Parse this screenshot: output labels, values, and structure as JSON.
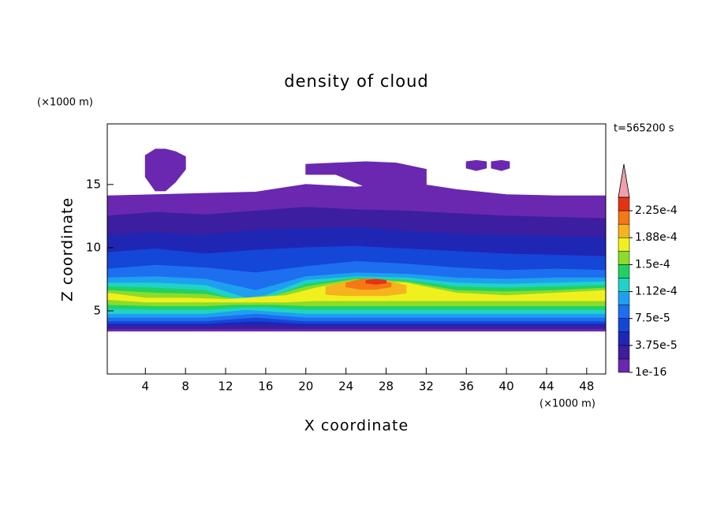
{
  "chart_data": {
    "type": "contour",
    "title": "density of cloud",
    "x_label": "X coordinate",
    "y_label": "Z coordinate",
    "x_unit": "(×1000 m)",
    "y_unit": "(×1000 m)",
    "time_label": "t=565200 s",
    "xlim": [
      0.2,
      49.9
    ],
    "ylim": [
      0,
      19.8
    ],
    "xticks": [
      4,
      8,
      12,
      16,
      20,
      24,
      28,
      32,
      36,
      40,
      44,
      48
    ],
    "yticks": [
      5,
      10,
      15
    ],
    "colors": [
      "#6a28b0",
      "#3c1ea0",
      "#2026b4",
      "#1446d8",
      "#1e6ef0",
      "#1ea0f0",
      "#20d2c8",
      "#20d264",
      "#8cdc28",
      "#f0f01e",
      "#f5b41e",
      "#f57814",
      "#e63214"
    ],
    "over_color": "#f0a0a8",
    "clim": [
      0,
      0.00024375
    ],
    "cticks": [
      {
        "value": 1e-16,
        "label": "1e-16"
      },
      {
        "value": 3.75e-05,
        "label": "3.75e-5"
      },
      {
        "value": 7.5e-05,
        "label": "7.5e-5"
      },
      {
        "value": 0.0001125,
        "label": "1.12e-4"
      },
      {
        "value": 0.00015,
        "label": "1.5e-4"
      },
      {
        "value": 0.0001875,
        "label": "1.88e-4"
      },
      {
        "value": 0.000225,
        "label": "2.25e-4"
      }
    ],
    "regions": [
      {
        "level": 0,
        "x": [
          0.2,
          5,
          10,
          15,
          20,
          25,
          30,
          35,
          40,
          45,
          49.9
        ],
        "top": [
          14.1,
          14.2,
          14.3,
          14.4,
          15.0,
          14.8,
          15.2,
          14.6,
          14.2,
          14.1,
          14.1
        ],
        "bottom": [
          3.4,
          3.4,
          3.4,
          3.4,
          3.4,
          3.4,
          3.4,
          3.4,
          3.4,
          3.4,
          3.4
        ]
      },
      {
        "level": 0,
        "x": [
          4,
          5,
          6,
          7,
          8
        ],
        "top": [
          17.3,
          17.8,
          17.8,
          17.6,
          17.2
        ],
        "bottom": [
          15.6,
          14.5,
          14.5,
          15.2,
          16.2
        ]
      },
      {
        "level": 0,
        "x": [
          20,
          23,
          26,
          29,
          32
        ],
        "top": [
          16.6,
          16.7,
          16.8,
          16.7,
          16.2
        ],
        "bottom": [
          15.8,
          15.8,
          14.8,
          14.3,
          15.0
        ]
      },
      {
        "level": 0,
        "x": [
          36,
          37,
          38
        ],
        "top": [
          16.8,
          16.9,
          16.8
        ],
        "bottom": [
          16.3,
          16.1,
          16.3
        ]
      },
      {
        "level": 0,
        "x": [
          38.5,
          39.5,
          40.3
        ],
        "top": [
          16.8,
          16.9,
          16.8
        ],
        "bottom": [
          16.3,
          16.1,
          16.3
        ]
      },
      {
        "level": 1,
        "x": [
          0.2,
          5,
          10,
          15,
          20,
          25,
          30,
          35,
          40,
          45,
          49.9
        ],
        "top": [
          12.5,
          12.8,
          12.6,
          12.9,
          13.2,
          13.0,
          12.9,
          12.7,
          12.5,
          12.4,
          12.3
        ],
        "bottom": [
          3.6,
          3.6,
          3.6,
          3.6,
          3.6,
          3.6,
          3.6,
          3.6,
          3.6,
          3.6,
          3.6
        ]
      },
      {
        "level": 2,
        "x": [
          0.2,
          5,
          10,
          15,
          20,
          25,
          30,
          35,
          40,
          45,
          49.9
        ],
        "top": [
          11.0,
          11.2,
          11.0,
          11.4,
          11.5,
          11.6,
          11.3,
          11.1,
          11.0,
          10.9,
          10.8
        ],
        "bottom": [
          3.8,
          3.8,
          3.8,
          3.9,
          3.8,
          3.8,
          3.8,
          3.8,
          3.8,
          3.8,
          3.8
        ]
      },
      {
        "level": 3,
        "x": [
          0.2,
          5,
          10,
          15,
          20,
          25,
          30,
          35,
          40,
          45,
          49.9
        ],
        "top": [
          9.6,
          9.9,
          9.5,
          9.8,
          10.0,
          10.1,
          9.9,
          9.7,
          9.5,
          9.4,
          9.3
        ],
        "bottom": [
          4.0,
          4.0,
          4.0,
          4.2,
          4.0,
          4.0,
          4.0,
          4.0,
          4.0,
          4.0,
          4.0
        ]
      },
      {
        "level": 4,
        "x": [
          0.2,
          5,
          10,
          15,
          20,
          25,
          30,
          35,
          40,
          45,
          49.9
        ],
        "top": [
          8.3,
          8.6,
          8.4,
          8.0,
          8.5,
          8.9,
          8.7,
          8.4,
          8.2,
          8.3,
          8.2
        ],
        "bottom": [
          4.2,
          4.2,
          4.2,
          4.5,
          4.2,
          4.2,
          4.2,
          4.2,
          4.2,
          4.2,
          4.2
        ]
      },
      {
        "level": 5,
        "x": [
          0.2,
          5,
          10,
          15,
          20,
          25,
          30,
          35,
          40,
          45,
          49.9
        ],
        "top": [
          7.6,
          7.7,
          7.5,
          6.6,
          7.7,
          8.0,
          7.9,
          7.6,
          7.5,
          7.6,
          7.6
        ],
        "bottom": [
          4.5,
          4.5,
          4.5,
          4.8,
          4.5,
          4.5,
          4.5,
          4.5,
          4.5,
          4.5,
          4.5
        ]
      },
      {
        "level": 6,
        "x": [
          0.2,
          5,
          10,
          14,
          16,
          20,
          25,
          30,
          35,
          40,
          45,
          49.9
        ],
        "top": [
          7.2,
          7.2,
          7.0,
          6.0,
          6.2,
          7.4,
          7.7,
          7.6,
          7.2,
          7.1,
          7.2,
          7.3
        ],
        "bottom": [
          4.8,
          4.8,
          4.8,
          5.1,
          5.0,
          4.8,
          4.8,
          4.8,
          4.8,
          4.8,
          4.8,
          4.8
        ]
      },
      {
        "level": 7,
        "x": [
          0.2,
          5,
          10,
          14,
          16,
          20,
          25,
          30,
          35,
          40,
          45,
          49.9
        ],
        "top": [
          6.9,
          6.8,
          6.6,
          5.6,
          5.9,
          7.1,
          7.6,
          7.4,
          6.9,
          6.8,
          6.9,
          7.0
        ],
        "bottom": [
          5.2,
          5.1,
          5.1,
          5.3,
          5.3,
          5.1,
          5.1,
          5.1,
          5.1,
          5.1,
          5.1,
          5.1
        ]
      },
      {
        "level": 8,
        "x": [
          0.2,
          5,
          10,
          13,
          17,
          20,
          25,
          30,
          35,
          40,
          45,
          49.9
        ],
        "top": [
          6.6,
          6.4,
          6.3,
          5.9,
          6.2,
          6.9,
          7.5,
          7.3,
          6.6,
          6.5,
          6.6,
          6.8
        ],
        "bottom": [
          5.5,
          5.4,
          5.4,
          5.5,
          5.5,
          5.4,
          5.4,
          5.4,
          5.4,
          5.4,
          5.4,
          5.4
        ]
      },
      {
        "level": 9,
        "x": [
          0.2,
          4,
          8,
          12,
          18,
          21,
          25,
          30,
          35,
          40,
          45,
          49.9
        ],
        "top": [
          6.4,
          6.0,
          6.0,
          5.9,
          6.2,
          6.8,
          7.4,
          7.2,
          6.4,
          6.2,
          6.4,
          6.6
        ],
        "bottom": [
          5.9,
          5.7,
          5.7,
          5.7,
          5.7,
          5.8,
          5.8,
          5.8,
          5.8,
          5.8,
          5.8,
          5.8
        ]
      },
      {
        "level": 10,
        "x": [
          22,
          24,
          26,
          28,
          30
        ],
        "top": [
          6.9,
          7.3,
          7.5,
          7.4,
          7.0
        ],
        "bottom": [
          6.3,
          6.2,
          6.2,
          6.2,
          6.4
        ]
      },
      {
        "level": 11,
        "x": [
          24,
          25.5,
          27,
          28.5
        ],
        "top": [
          7.2,
          7.5,
          7.5,
          7.2
        ],
        "bottom": [
          6.9,
          6.7,
          6.7,
          6.9
        ]
      },
      {
        "level": 12,
        "x": [
          26,
          27,
          28
        ],
        "top": [
          7.4,
          7.5,
          7.4
        ],
        "bottom": [
          7.2,
          7.1,
          7.2
        ]
      }
    ]
  }
}
